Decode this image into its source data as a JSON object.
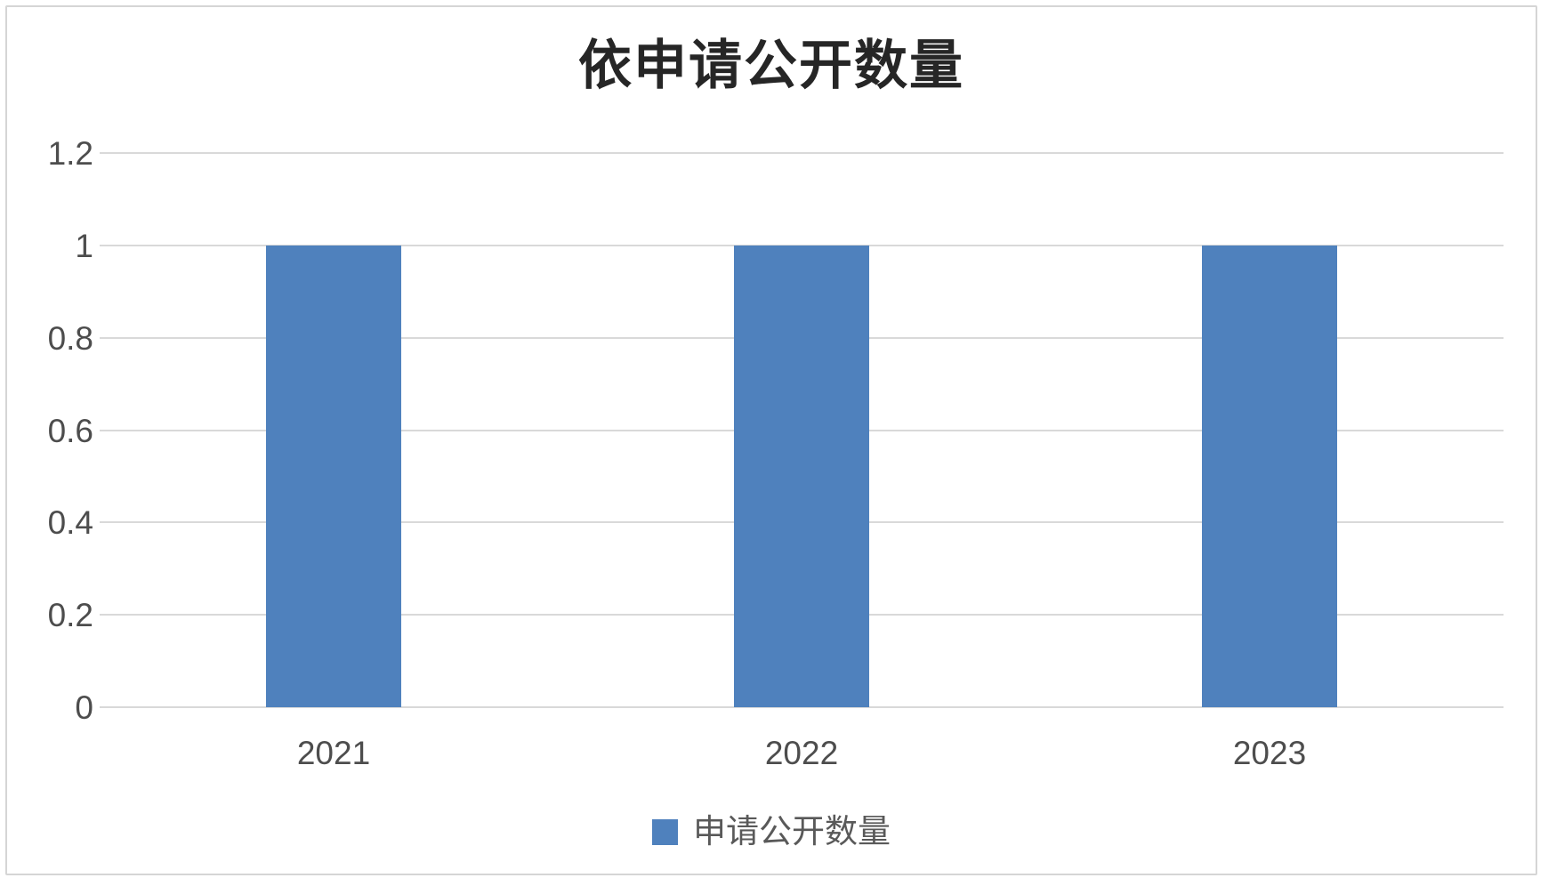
{
  "title": "依申请公开数量",
  "legend": {
    "label": "申请公开数量"
  },
  "colors": {
    "bar": "#4f81bd",
    "gridline": "#d9d9d9",
    "frame_border": "#d5d5d5",
    "title_text": "#262626",
    "axis_text": "#4d4d4d",
    "legend_text": "#595959",
    "background": "#ffffff"
  },
  "chart_data": {
    "type": "bar",
    "title": "依申请公开数量",
    "categories": [
      "2021",
      "2022",
      "2023"
    ],
    "series": [
      {
        "name": "申请公开数量",
        "values": [
          1,
          1,
          1
        ]
      }
    ],
    "xlabel": "",
    "ylabel": "",
    "ylim": [
      0,
      1.2
    ],
    "yticks": [
      0,
      0.2,
      0.4,
      0.6,
      0.8,
      1,
      1.2
    ],
    "ytick_labels": [
      "0",
      "0.2",
      "0.4",
      "0.6",
      "0.8",
      "1",
      "1.2"
    ],
    "grid": true,
    "legend_position": "bottom"
  }
}
